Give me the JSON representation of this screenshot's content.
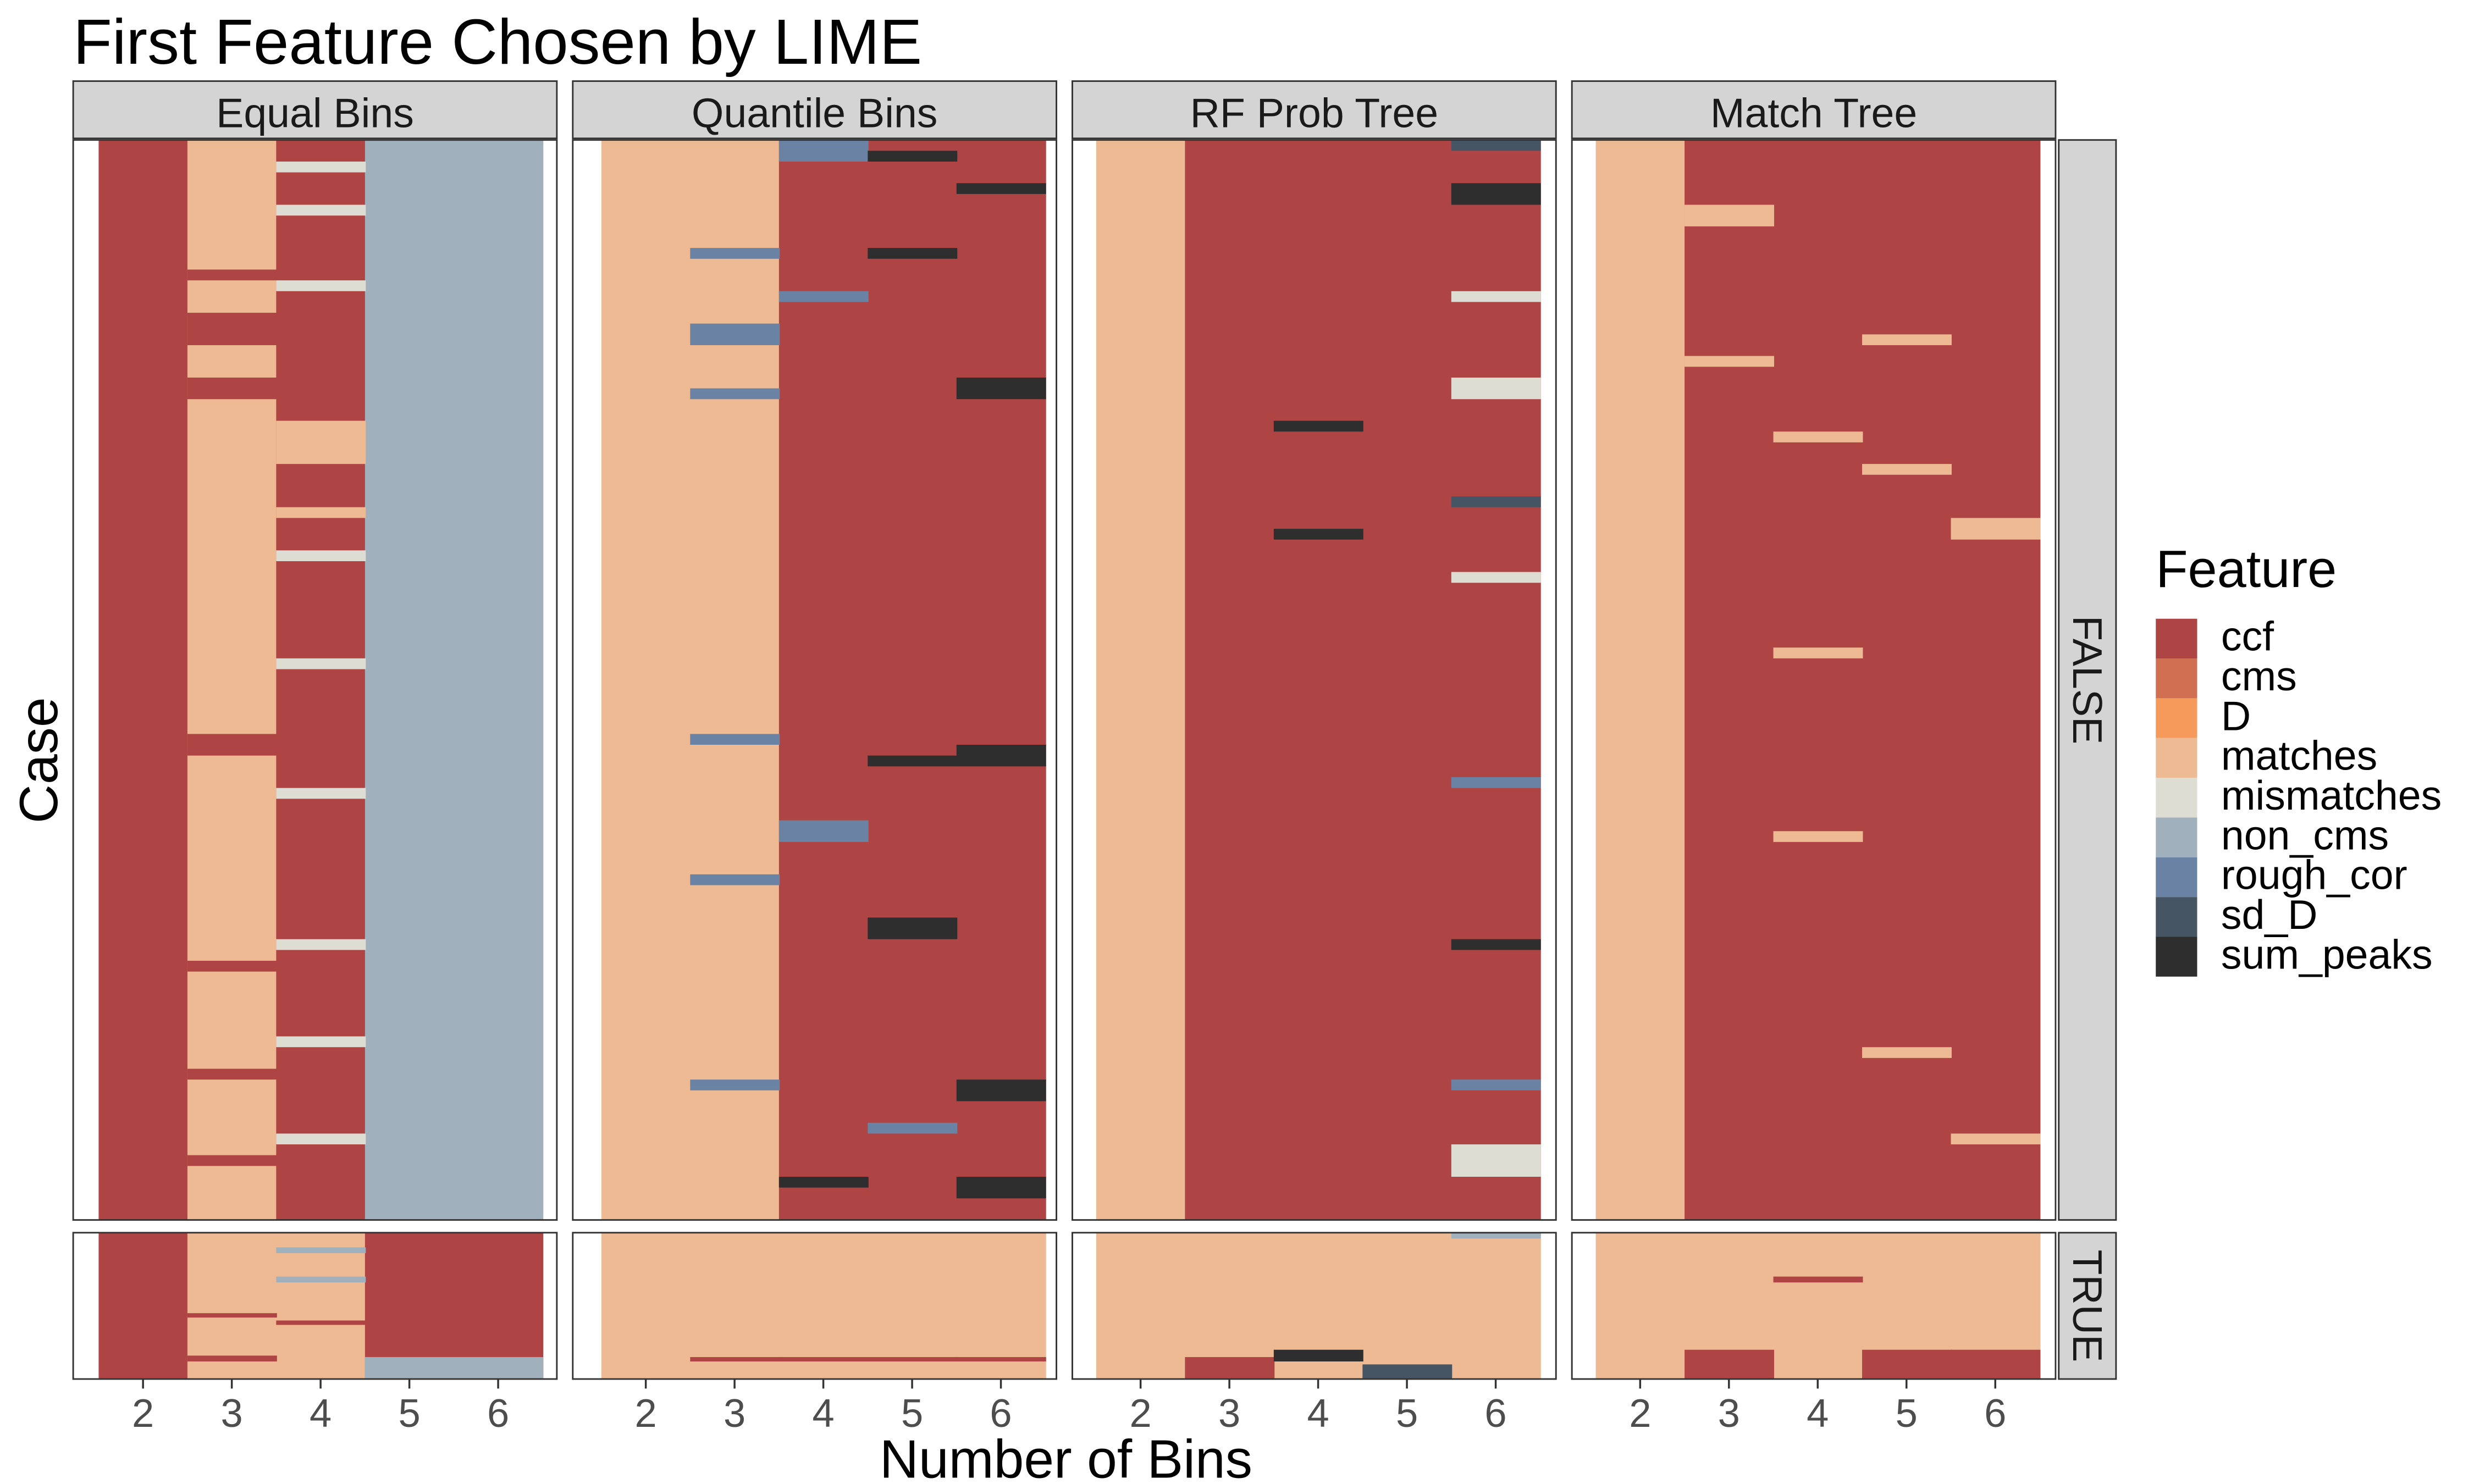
{
  "chart_data": {
    "type": "heatmap",
    "title": "First Feature Chosen by LIME",
    "xlabel": "Number of Bins",
    "ylabel": "Case",
    "x": [
      2,
      3,
      4,
      5,
      6
    ],
    "panels": [
      "Equal Bins",
      "Quantile Bins",
      "RF Prob Tree",
      "Match Tree"
    ],
    "row_facets": [
      "FALSE",
      "TRUE"
    ],
    "legend": {
      "title": "Feature",
      "position": "right",
      "entries": [
        {
          "name": "ccf",
          "color": "#AE4544"
        },
        {
          "name": "cms",
          "color": "#D06F52"
        },
        {
          "name": "D",
          "color": "#F59A5B"
        },
        {
          "name": "matches",
          "color": "#EDBA94"
        },
        {
          "name": "mismatches",
          "color": "#DEDDD4"
        },
        {
          "name": "non_cms",
          "color": "#A1B0BD"
        },
        {
          "name": "rough_cor",
          "color": "#6A82A3"
        },
        {
          "name": "sd_D",
          "color": "#465563"
        },
        {
          "name": "sum_peaks",
          "color": "#2E2E2E"
        }
      ]
    },
    "panel_columns": {
      "Equal Bins": [
        2,
        3,
        4,
        5,
        6
      ],
      "Quantile Bins": [
        2,
        3,
        4,
        5,
        6
      ],
      "RF Prob Tree": [
        2,
        3,
        4,
        5,
        6
      ],
      "Match Tree": [
        2,
        3,
        4,
        5,
        6
      ]
    },
    "base_feature": {
      "FALSE": {
        "Equal Bins": [
          "ccf",
          "matches",
          "ccf",
          "non_cms",
          "non_cms"
        ],
        "Quantile Bins": [
          "matches",
          "matches",
          "ccf",
          "ccf",
          "ccf"
        ],
        "RF Prob Tree": [
          "matches",
          "ccf",
          "ccf",
          "ccf",
          "ccf"
        ],
        "Match Tree": [
          "matches",
          "ccf",
          "ccf",
          "ccf",
          "ccf"
        ]
      },
      "TRUE": {
        "Equal Bins": [
          "ccf",
          "matches",
          "matches",
          "ccf",
          "ccf"
        ],
        "Quantile Bins": [
          "matches",
          "matches",
          "matches",
          "matches",
          "matches"
        ],
        "RF Prob Tree": [
          "matches",
          "matches",
          "matches",
          "matches",
          "matches"
        ],
        "Match Tree": [
          "matches",
          "matches",
          "matches",
          "matches",
          "matches"
        ]
      }
    },
    "approx_bands": {
      "FALSE": {
        "Equal Bins": [
          {
            "col": 3,
            "start": 0.12,
            "end": 0.13,
            "feature": "ccf"
          },
          {
            "col": 3,
            "start": 0.16,
            "end": 0.19,
            "feature": "ccf"
          },
          {
            "col": 3,
            "start": 0.22,
            "end": 0.24,
            "feature": "ccf"
          },
          {
            "col": 3,
            "start": 0.55,
            "end": 0.57,
            "feature": "ccf"
          },
          {
            "col": 3,
            "start": 0.76,
            "end": 0.77,
            "feature": "ccf"
          },
          {
            "col": 3,
            "start": 0.86,
            "end": 0.87,
            "feature": "ccf"
          },
          {
            "col": 3,
            "start": 0.94,
            "end": 0.95,
            "feature": "ccf"
          },
          {
            "col": 4,
            "start": 0.02,
            "end": 0.03,
            "feature": "mismatches"
          },
          {
            "col": 4,
            "start": 0.06,
            "end": 0.07,
            "feature": "mismatches"
          },
          {
            "col": 4,
            "start": 0.13,
            "end": 0.14,
            "feature": "mismatches"
          },
          {
            "col": 4,
            "start": 0.26,
            "end": 0.3,
            "feature": "matches"
          },
          {
            "col": 4,
            "start": 0.34,
            "end": 0.35,
            "feature": "matches"
          },
          {
            "col": 4,
            "start": 0.38,
            "end": 0.39,
            "feature": "mismatches"
          },
          {
            "col": 4,
            "start": 0.48,
            "end": 0.49,
            "feature": "mismatches"
          },
          {
            "col": 4,
            "start": 0.6,
            "end": 0.61,
            "feature": "mismatches"
          },
          {
            "col": 4,
            "start": 0.74,
            "end": 0.75,
            "feature": "mismatches"
          },
          {
            "col": 4,
            "start": 0.83,
            "end": 0.84,
            "feature": "mismatches"
          },
          {
            "col": 4,
            "start": 0.92,
            "end": 0.93,
            "feature": "mismatches"
          }
        ],
        "Quantile Bins": [
          {
            "col": 3,
            "start": 0.1,
            "end": 0.11,
            "feature": "rough_cor"
          },
          {
            "col": 3,
            "start": 0.17,
            "end": 0.19,
            "feature": "rough_cor"
          },
          {
            "col": 3,
            "start": 0.23,
            "end": 0.24,
            "feature": "rough_cor"
          },
          {
            "col": 3,
            "start": 0.55,
            "end": 0.56,
            "feature": "rough_cor"
          },
          {
            "col": 3,
            "start": 0.68,
            "end": 0.69,
            "feature": "rough_cor"
          },
          {
            "col": 3,
            "start": 0.87,
            "end": 0.88,
            "feature": "rough_cor"
          },
          {
            "col": 4,
            "start": 0.0,
            "end": 0.02,
            "feature": "rough_cor"
          },
          {
            "col": 4,
            "start": 0.14,
            "end": 0.15,
            "feature": "rough_cor"
          },
          {
            "col": 4,
            "start": 0.63,
            "end": 0.65,
            "feature": "rough_cor"
          },
          {
            "col": 4,
            "start": 0.96,
            "end": 0.97,
            "feature": "sum_peaks"
          },
          {
            "col": 5,
            "start": 0.01,
            "end": 0.02,
            "feature": "sum_peaks"
          },
          {
            "col": 5,
            "start": 0.1,
            "end": 0.11,
            "feature": "sum_peaks"
          },
          {
            "col": 5,
            "start": 0.57,
            "end": 0.58,
            "feature": "sum_peaks"
          },
          {
            "col": 5,
            "start": 0.72,
            "end": 0.74,
            "feature": "sum_peaks"
          },
          {
            "col": 5,
            "start": 0.91,
            "end": 0.92,
            "feature": "rough_cor"
          },
          {
            "col": 6,
            "start": 0.04,
            "end": 0.05,
            "feature": "sum_peaks"
          },
          {
            "col": 6,
            "start": 0.22,
            "end": 0.24,
            "feature": "sum_peaks"
          },
          {
            "col": 6,
            "start": 0.56,
            "end": 0.58,
            "feature": "sum_peaks"
          },
          {
            "col": 6,
            "start": 0.87,
            "end": 0.89,
            "feature": "sum_peaks"
          },
          {
            "col": 6,
            "start": 0.96,
            "end": 0.98,
            "feature": "sum_peaks"
          }
        ],
        "RF Prob Tree": [
          {
            "col": 4,
            "start": 0.26,
            "end": 0.27,
            "feature": "sum_peaks"
          },
          {
            "col": 4,
            "start": 0.36,
            "end": 0.37,
            "feature": "sum_peaks"
          },
          {
            "col": 6,
            "start": 0.0,
            "end": 0.01,
            "feature": "sd_D"
          },
          {
            "col": 6,
            "start": 0.04,
            "end": 0.06,
            "feature": "sum_peaks"
          },
          {
            "col": 6,
            "start": 0.14,
            "end": 0.15,
            "feature": "mismatches"
          },
          {
            "col": 6,
            "start": 0.22,
            "end": 0.24,
            "feature": "mismatches"
          },
          {
            "col": 6,
            "start": 0.33,
            "end": 0.34,
            "feature": "sd_D"
          },
          {
            "col": 6,
            "start": 0.4,
            "end": 0.41,
            "feature": "mismatches"
          },
          {
            "col": 6,
            "start": 0.59,
            "end": 0.6,
            "feature": "rough_cor"
          },
          {
            "col": 6,
            "start": 0.74,
            "end": 0.75,
            "feature": "sum_peaks"
          },
          {
            "col": 6,
            "start": 0.87,
            "end": 0.88,
            "feature": "rough_cor"
          },
          {
            "col": 6,
            "start": 0.93,
            "end": 0.96,
            "feature": "mismatches"
          }
        ],
        "Match Tree": [
          {
            "col": 3,
            "start": 0.06,
            "end": 0.08,
            "feature": "matches"
          },
          {
            "col": 3,
            "start": 0.2,
            "end": 0.21,
            "feature": "matches"
          },
          {
            "col": 4,
            "start": 0.27,
            "end": 0.28,
            "feature": "matches"
          },
          {
            "col": 4,
            "start": 0.47,
            "end": 0.48,
            "feature": "matches"
          },
          {
            "col": 4,
            "start": 0.64,
            "end": 0.65,
            "feature": "matches"
          },
          {
            "col": 5,
            "start": 0.18,
            "end": 0.19,
            "feature": "matches"
          },
          {
            "col": 5,
            "start": 0.3,
            "end": 0.31,
            "feature": "matches"
          },
          {
            "col": 5,
            "start": 0.84,
            "end": 0.85,
            "feature": "matches"
          },
          {
            "col": 6,
            "start": 0.35,
            "end": 0.37,
            "feature": "matches"
          },
          {
            "col": 6,
            "start": 0.92,
            "end": 0.93,
            "feature": "matches"
          }
        ]
      },
      "TRUE": {
        "Equal Bins": [
          {
            "col": 3,
            "start": 0.55,
            "end": 0.58,
            "feature": "ccf"
          },
          {
            "col": 3,
            "start": 0.84,
            "end": 0.88,
            "feature": "ccf"
          },
          {
            "col": 4,
            "start": 0.1,
            "end": 0.14,
            "feature": "non_cms"
          },
          {
            "col": 4,
            "start": 0.3,
            "end": 0.34,
            "feature": "non_cms"
          },
          {
            "col": 4,
            "start": 0.6,
            "end": 0.63,
            "feature": "ccf"
          },
          {
            "col": 5,
            "start": 0.85,
            "end": 1.0,
            "feature": "non_cms"
          },
          {
            "col": 6,
            "start": 0.85,
            "end": 1.0,
            "feature": "non_cms"
          }
        ],
        "Quantile Bins": [
          {
            "col": 3,
            "start": 0.85,
            "end": 0.88,
            "feature": "ccf"
          },
          {
            "col": 4,
            "start": 0.85,
            "end": 0.88,
            "feature": "ccf"
          },
          {
            "col": 5,
            "start": 0.85,
            "end": 0.88,
            "feature": "ccf"
          },
          {
            "col": 6,
            "start": 0.85,
            "end": 0.88,
            "feature": "ccf"
          }
        ],
        "RF Prob Tree": [
          {
            "col": 3,
            "start": 0.85,
            "end": 1.0,
            "feature": "ccf"
          },
          {
            "col": 4,
            "start": 0.8,
            "end": 0.88,
            "feature": "sum_peaks"
          },
          {
            "col": 5,
            "start": 0.9,
            "end": 1.0,
            "feature": "sd_D"
          },
          {
            "col": 6,
            "start": 0.0,
            "end": 0.04,
            "feature": "non_cms"
          }
        ],
        "Match Tree": [
          {
            "col": 3,
            "start": 0.8,
            "end": 1.0,
            "feature": "ccf"
          },
          {
            "col": 4,
            "start": 0.3,
            "end": 0.34,
            "feature": "ccf"
          },
          {
            "col": 5,
            "start": 0.8,
            "end": 1.0,
            "feature": "ccf"
          },
          {
            "col": 6,
            "start": 0.8,
            "end": 1.0,
            "feature": "ccf"
          }
        ]
      }
    }
  }
}
